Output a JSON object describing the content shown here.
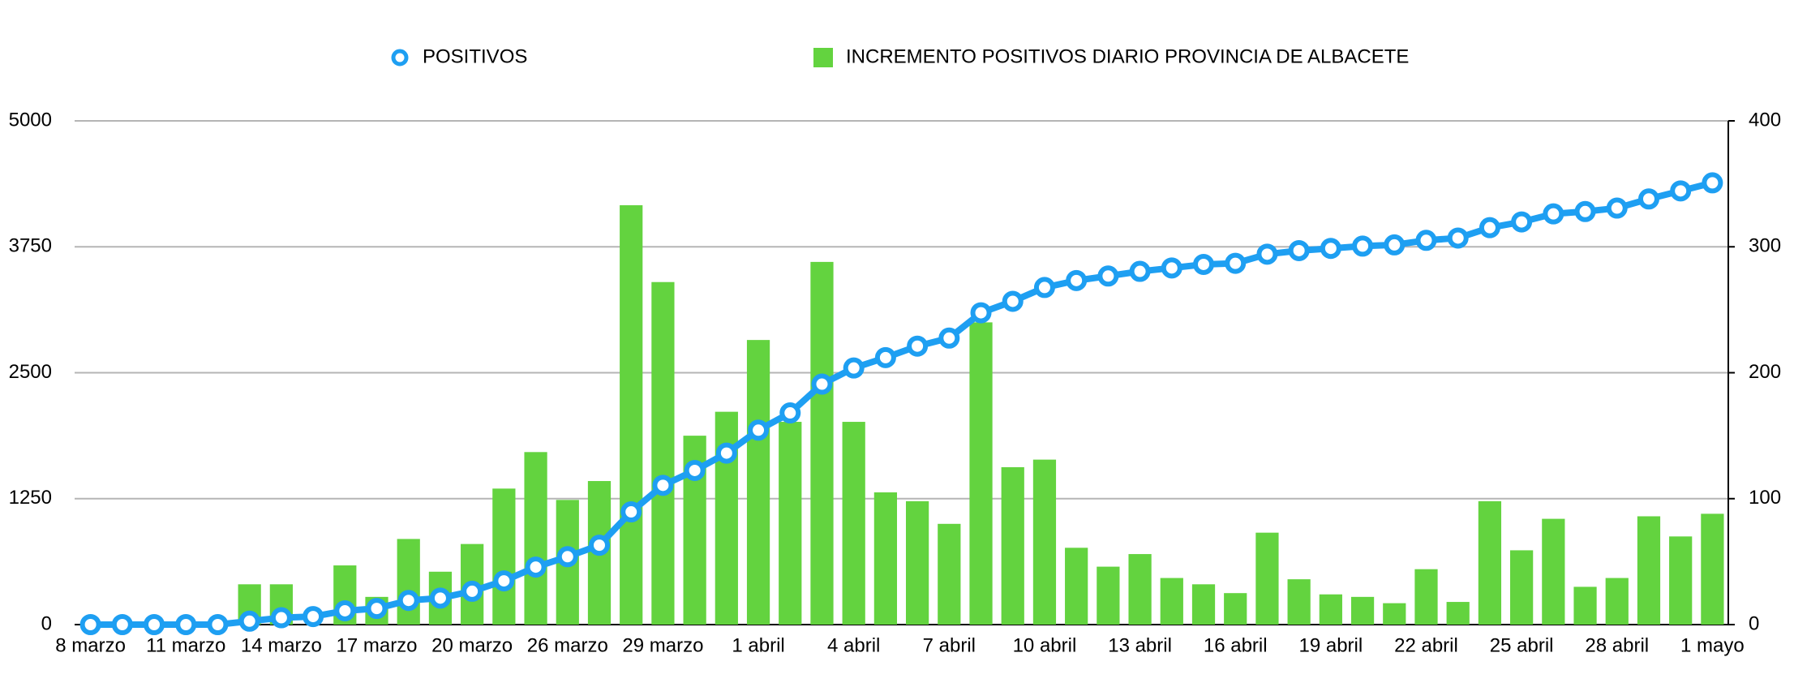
{
  "chart_data": {
    "type": "combo",
    "categories": [
      "8 marzo",
      null,
      null,
      "11 marzo",
      null,
      null,
      "14 marzo",
      null,
      null,
      "17 marzo",
      null,
      null,
      "20 marzo",
      null,
      null,
      "26 marzo",
      null,
      null,
      "29 marzo",
      null,
      null,
      "1 abril",
      null,
      null,
      "4 abril",
      null,
      null,
      "7 abril",
      null,
      null,
      "10 abril",
      null,
      null,
      "13 abril",
      null,
      null,
      "16 abril",
      null,
      null,
      "19 abril",
      null,
      null,
      "22 abril",
      null,
      null,
      "25 abril",
      null,
      null,
      "28 abril",
      null,
      null,
      "1 mayo"
    ],
    "series": [
      {
        "name": "POSITIVOS",
        "type": "line",
        "color": "#1e9ff2",
        "values": [
          0,
          0,
          0,
          0,
          0,
          34,
          68,
          80,
          137,
          160,
          240,
          263,
          331,
          434,
          571,
          674,
          788,
          1119,
          1382,
          1530,
          1702,
          1930,
          2101,
          2387,
          2547,
          2650,
          2764,
          2844,
          3095,
          3209,
          3346,
          3415,
          3460,
          3506,
          3540,
          3575,
          3586,
          3677,
          3712,
          3734,
          3757,
          3769,
          3814,
          3837,
          3940,
          3997,
          4077,
          4100,
          4134,
          4225,
          4305,
          4385
        ]
      },
      {
        "name": "INCREMENTO POSITIVOS DIARIO PROVINCIA DE ALBACETE",
        "type": "bar",
        "axis": "y2",
        "color": "#63d33f",
        "values": [
          0,
          0,
          0,
          0,
          0,
          32,
          32,
          0,
          47,
          22,
          68,
          42,
          64,
          108,
          137,
          99,
          114,
          333,
          272,
          150,
          169,
          226,
          161,
          288,
          161,
          105,
          98,
          80,
          240,
          125,
          131,
          61,
          46,
          56,
          37,
          32,
          25,
          73,
          36,
          24,
          22,
          17,
          44,
          18,
          98,
          59,
          84,
          30,
          37,
          86,
          70,
          88
        ]
      }
    ],
    "ylim": [
      0,
      5000
    ],
    "yticks": [
      0,
      1250,
      2500,
      3750,
      5000
    ],
    "y2lim": [
      0,
      400
    ],
    "y2ticks": [
      0,
      100,
      200,
      300,
      400
    ],
    "grid": true,
    "legend": "top"
  }
}
